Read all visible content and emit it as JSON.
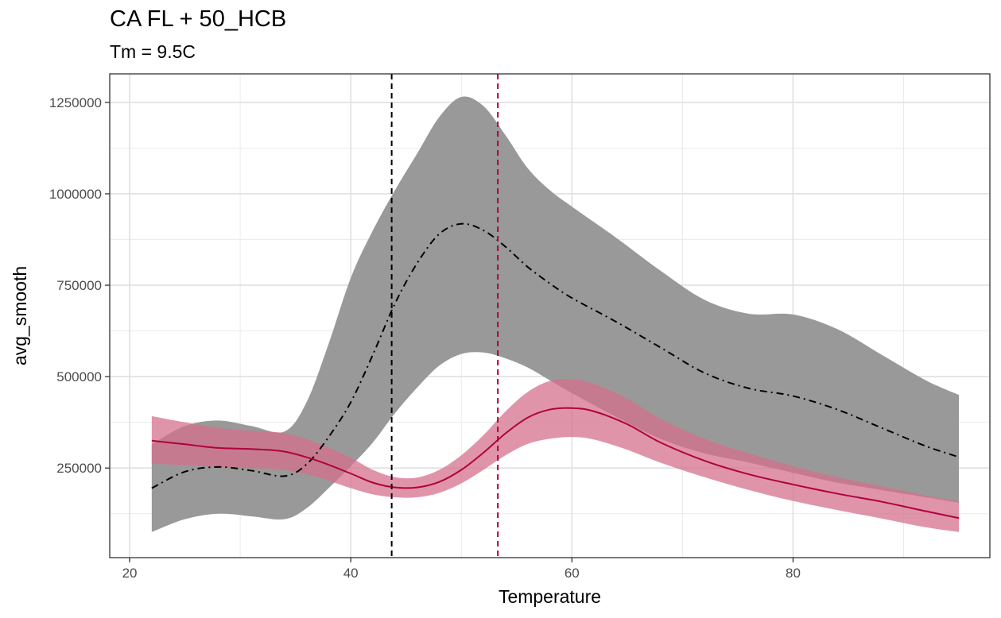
{
  "chart_data": {
    "type": "line",
    "title": "CA FL + 50_HCB",
    "subtitle": "Tm = 9.5C",
    "xlabel": "Temperature",
    "ylabel": "avg_smooth",
    "xlim": [
      18.2,
      97.8
    ],
    "ylim": [
      5000,
      1328000
    ],
    "x_ticks": [
      20,
      40,
      60,
      80
    ],
    "y_ticks": [
      250000,
      500000,
      750000,
      1000000,
      1250000
    ],
    "grid": true,
    "legend": "none",
    "series": [
      {
        "color": "#000000",
        "linestyle": "dashdot",
        "ribbon_color": "#999999",
        "points": [
          {
            "x": 22,
            "y": 195000,
            "lower": 75000,
            "upper": 315000
          },
          {
            "x": 25,
            "y": 240000,
            "lower": 110000,
            "upper": 365000
          },
          {
            "x": 28,
            "y": 253000,
            "lower": 125000,
            "upper": 380000
          },
          {
            "x": 31,
            "y": 243000,
            "lower": 118000,
            "upper": 365000
          },
          {
            "x": 34,
            "y": 228000,
            "lower": 110000,
            "upper": 350000
          },
          {
            "x": 36,
            "y": 260000,
            "lower": 140000,
            "upper": 430000
          },
          {
            "x": 38,
            "y": 335000,
            "lower": 195000,
            "upper": 590000
          },
          {
            "x": 40,
            "y": 430000,
            "lower": 255000,
            "upper": 770000
          },
          {
            "x": 42,
            "y": 560000,
            "lower": 320000,
            "upper": 900000
          },
          {
            "x": 44,
            "y": 700000,
            "lower": 400000,
            "upper": 1010000
          },
          {
            "x": 46,
            "y": 810000,
            "lower": 470000,
            "upper": 1110000
          },
          {
            "x": 48,
            "y": 890000,
            "lower": 530000,
            "upper": 1210000
          },
          {
            "x": 50,
            "y": 918000,
            "lower": 562000,
            "upper": 1265000
          },
          {
            "x": 52,
            "y": 900000,
            "lower": 566000,
            "upper": 1240000
          },
          {
            "x": 54,
            "y": 855000,
            "lower": 550000,
            "upper": 1160000
          },
          {
            "x": 56,
            "y": 800000,
            "lower": 525000,
            "upper": 1070000
          },
          {
            "x": 58,
            "y": 755000,
            "lower": 490000,
            "upper": 1010000
          },
          {
            "x": 60,
            "y": 715000,
            "lower": 455000,
            "upper": 965000
          },
          {
            "x": 64,
            "y": 650000,
            "lower": 390000,
            "upper": 880000
          },
          {
            "x": 68,
            "y": 580000,
            "lower": 330000,
            "upper": 790000
          },
          {
            "x": 72,
            "y": 510000,
            "lower": 290000,
            "upper": 710000
          },
          {
            "x": 76,
            "y": 468000,
            "lower": 265000,
            "upper": 672000
          },
          {
            "x": 80,
            "y": 447000,
            "lower": 237000,
            "upper": 670000
          },
          {
            "x": 84,
            "y": 410000,
            "lower": 210000,
            "upper": 630000
          },
          {
            "x": 88,
            "y": 360000,
            "lower": 190000,
            "upper": 560000
          },
          {
            "x": 92,
            "y": 310000,
            "lower": 170000,
            "upper": 490000
          },
          {
            "x": 95,
            "y": 280000,
            "lower": 155000,
            "upper": 450000
          }
        ]
      },
      {
        "color": "#b00040",
        "linestyle": "solid",
        "ribbon_color": "#d6708e",
        "points": [
          {
            "x": 22,
            "y": 325000,
            "lower": 262000,
            "upper": 392000
          },
          {
            "x": 25,
            "y": 315000,
            "lower": 258000,
            "upper": 375000
          },
          {
            "x": 28,
            "y": 305000,
            "lower": 253000,
            "upper": 360000
          },
          {
            "x": 31,
            "y": 302000,
            "lower": 250000,
            "upper": 352000
          },
          {
            "x": 34,
            "y": 295000,
            "lower": 245000,
            "upper": 345000
          },
          {
            "x": 37,
            "y": 270000,
            "lower": 225000,
            "upper": 318000
          },
          {
            "x": 40,
            "y": 235000,
            "lower": 195000,
            "upper": 278000
          },
          {
            "x": 42,
            "y": 210000,
            "lower": 178000,
            "upper": 245000
          },
          {
            "x": 44,
            "y": 197000,
            "lower": 170000,
            "upper": 225000
          },
          {
            "x": 46,
            "y": 197000,
            "lower": 170000,
            "upper": 224000
          },
          {
            "x": 48,
            "y": 212000,
            "lower": 182000,
            "upper": 245000
          },
          {
            "x": 50,
            "y": 245000,
            "lower": 208000,
            "upper": 285000
          },
          {
            "x": 52,
            "y": 292000,
            "lower": 245000,
            "upper": 340000
          },
          {
            "x": 54,
            "y": 345000,
            "lower": 285000,
            "upper": 405000
          },
          {
            "x": 56,
            "y": 388000,
            "lower": 316000,
            "upper": 458000
          },
          {
            "x": 58,
            "y": 410000,
            "lower": 330000,
            "upper": 488000
          },
          {
            "x": 60,
            "y": 414000,
            "lower": 335000,
            "upper": 493000
          },
          {
            "x": 62,
            "y": 405000,
            "lower": 328000,
            "upper": 480000
          },
          {
            "x": 65,
            "y": 370000,
            "lower": 300000,
            "upper": 440000
          },
          {
            "x": 68,
            "y": 320000,
            "lower": 265000,
            "upper": 385000
          },
          {
            "x": 72,
            "y": 270000,
            "lower": 225000,
            "upper": 330000
          },
          {
            "x": 76,
            "y": 233000,
            "lower": 190000,
            "upper": 290000
          },
          {
            "x": 80,
            "y": 205000,
            "lower": 160000,
            "upper": 255000
          },
          {
            "x": 84,
            "y": 180000,
            "lower": 135000,
            "upper": 225000
          },
          {
            "x": 88,
            "y": 158000,
            "lower": 112000,
            "upper": 200000
          },
          {
            "x": 92,
            "y": 132000,
            "lower": 88000,
            "upper": 175000
          },
          {
            "x": 95,
            "y": 113000,
            "lower": 75000,
            "upper": 158000
          }
        ]
      }
    ],
    "vlines": [
      {
        "x": 43.7,
        "color": "#000000",
        "linestyle": "dashed"
      },
      {
        "x": 53.3,
        "color": "#b00040",
        "linestyle": "dashed"
      }
    ]
  }
}
